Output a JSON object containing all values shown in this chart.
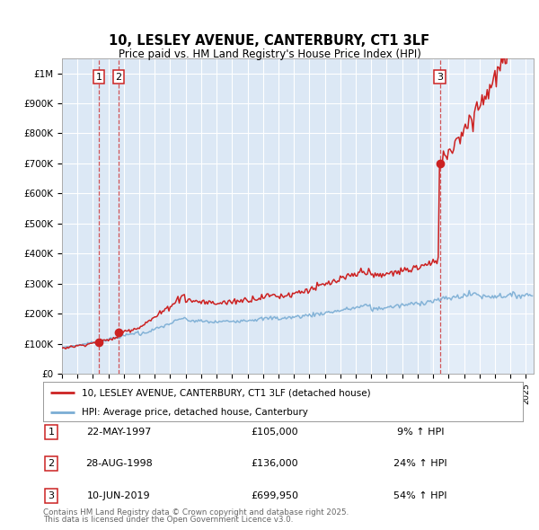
{
  "title1": "10, LESLEY AVENUE, CANTERBURY, CT1 3LF",
  "title2": "Price paid vs. HM Land Registry's House Price Index (HPI)",
  "bg_color": "#dce8f5",
  "plot_bg": "#dce8f5",
  "transactions": [
    {
      "num": 1,
      "date_str": "22-MAY-1997",
      "date_x": 1997.38,
      "price": 105000,
      "pct": "9%"
    },
    {
      "num": 2,
      "date_str": "28-AUG-1998",
      "date_x": 1998.66,
      "price": 136000,
      "pct": "24%"
    },
    {
      "num": 3,
      "date_str": "10-JUN-2019",
      "date_x": 2019.44,
      "price": 699950,
      "pct": "54%"
    }
  ],
  "hpi_color": "#7aadd4",
  "price_color": "#cc2222",
  "legend_label_price": "10, LESLEY AVENUE, CANTERBURY, CT1 3LF (detached house)",
  "legend_label_hpi": "HPI: Average price, detached house, Canterbury",
  "footer1": "Contains HM Land Registry data © Crown copyright and database right 2025.",
  "footer2": "This data is licensed under the Open Government Licence v3.0.",
  "ylim_max": 1050000,
  "xmin": 1995.0,
  "xmax": 2025.5,
  "yticks": [
    0,
    100000,
    200000,
    300000,
    400000,
    500000,
    600000,
    700000,
    800000,
    900000,
    1000000
  ],
  "ytick_labels": [
    "£0",
    "£100K",
    "£200K",
    "£300K",
    "£400K",
    "£500K",
    "£600K",
    "£700K",
    "£800K",
    "£900K",
    "£1M"
  ]
}
